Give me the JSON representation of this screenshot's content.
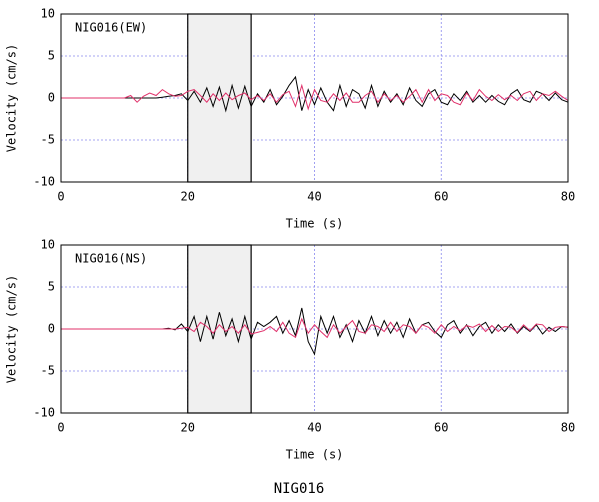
{
  "caption": "NIG016",
  "chart_data": [
    {
      "type": "line",
      "annotation": "NIG016(EW)",
      "xlabel": "Time (s)",
      "ylabel": "Velocity (cm/s)",
      "xlim": [
        0,
        80
      ],
      "xticks": [
        0,
        20,
        40,
        60,
        80
      ],
      "ylim": [
        -10,
        10
      ],
      "yticks": [
        -10,
        -5,
        0,
        5,
        10
      ],
      "grid": true,
      "shaded_region": [
        20,
        30
      ],
      "x": [
        0,
        1,
        2,
        3,
        4,
        5,
        6,
        7,
        8,
        9,
        10,
        11,
        12,
        13,
        14,
        15,
        16,
        17,
        18,
        19,
        20,
        21,
        22,
        23,
        24,
        25,
        26,
        27,
        28,
        29,
        30,
        31,
        32,
        33,
        34,
        35,
        36,
        37,
        38,
        39,
        40,
        41,
        42,
        43,
        44,
        45,
        46,
        47,
        48,
        49,
        50,
        51,
        52,
        53,
        54,
        55,
        56,
        57,
        58,
        59,
        60,
        61,
        62,
        63,
        64,
        65,
        66,
        67,
        68,
        69,
        70,
        71,
        72,
        73,
        74,
        75,
        76,
        77,
        78,
        79,
        80
      ],
      "series": [
        {
          "color": "#000000",
          "values": [
            0,
            0,
            0,
            0,
            0,
            0,
            0,
            0,
            0,
            0,
            0,
            0,
            0,
            0,
            0,
            0,
            0.1,
            0.2,
            0.3,
            0.5,
            -0.3,
            0.8,
            -0.5,
            1.2,
            -1.0,
            1.3,
            -1.5,
            1.5,
            -1.2,
            1.4,
            -1.0,
            0.5,
            -0.5,
            1.0,
            -0.8,
            0.2,
            1.5,
            2.5,
            -1.5,
            1.0,
            -0.8,
            1.2,
            -0.5,
            -1.5,
            1.5,
            -1.0,
            1.0,
            0.5,
            -1.2,
            1.5,
            -1.0,
            0.8,
            -0.5,
            0.5,
            -0.8,
            1.2,
            -0.3,
            -1.0,
            0.5,
            1.0,
            -0.5,
            -0.8,
            0.5,
            -0.3,
            0.8,
            -0.5,
            0.3,
            -0.5,
            0.3,
            -0.4,
            -0.8,
            0.5,
            1.0,
            -0.2,
            -0.5,
            0.8,
            0.5,
            -0.3,
            0.6,
            -0.2,
            -0.5
          ]
        },
        {
          "color": "#e0306a",
          "values": [
            0,
            0,
            0,
            0,
            0,
            0,
            0,
            0,
            0,
            0,
            0,
            0.3,
            -0.5,
            0.2,
            0.6,
            0.3,
            1.0,
            0.5,
            0.2,
            0.3,
            0.8,
            1.0,
            0.3,
            -0.5,
            0.5,
            -0.3,
            0.6,
            -0.2,
            0.3,
            0.6,
            -0.2,
            0.3,
            -0.3,
            0.5,
            -0.5,
            0.4,
            0.8,
            -1.0,
            1.5,
            -1.3,
            1.0,
            -0.3,
            -0.5,
            0.5,
            -0.3,
            0.6,
            -0.5,
            -0.5,
            0.3,
            0.8,
            -0.5,
            0.5,
            -0.3,
            0.3,
            -0.5,
            0.2,
            1.0,
            -0.5,
            1.0,
            -0.3,
            0.5,
            0.3,
            -0.5,
            -0.8,
            0.6,
            -0.3,
            1.0,
            0.2,
            -0.3,
            0.4,
            -0.2,
            0.3,
            -0.3,
            0.5,
            0.8,
            -0.3,
            0.5,
            0.3,
            0.8,
            0.2,
            -0.3
          ]
        }
      ]
    },
    {
      "type": "line",
      "annotation": "NIG016(NS)",
      "xlabel": "Time (s)",
      "ylabel": "Velocity (cm/s)",
      "xlim": [
        0,
        80
      ],
      "xticks": [
        0,
        20,
        40,
        60,
        80
      ],
      "ylim": [
        -10,
        10
      ],
      "yticks": [
        -10,
        -5,
        0,
        5,
        10
      ],
      "grid": true,
      "shaded_region": [
        20,
        30
      ],
      "x": [
        0,
        1,
        2,
        3,
        4,
        5,
        6,
        7,
        8,
        9,
        10,
        11,
        12,
        13,
        14,
        15,
        16,
        17,
        18,
        19,
        20,
        21,
        22,
        23,
        24,
        25,
        26,
        27,
        28,
        29,
        30,
        31,
        32,
        33,
        34,
        35,
        36,
        37,
        38,
        39,
        40,
        41,
        42,
        43,
        44,
        45,
        46,
        47,
        48,
        49,
        50,
        51,
        52,
        53,
        54,
        55,
        56,
        57,
        58,
        59,
        60,
        61,
        62,
        63,
        64,
        65,
        66,
        67,
        68,
        69,
        70,
        71,
        72,
        73,
        74,
        75,
        76,
        77,
        78,
        79,
        80
      ],
      "series": [
        {
          "color": "#000000",
          "values": [
            0,
            0,
            0,
            0,
            0,
            0,
            0,
            0,
            0,
            0,
            0,
            0,
            0,
            0,
            0,
            0,
            0,
            0.1,
            -0.1,
            0.6,
            -0.3,
            1.5,
            -1.5,
            1.5,
            -1.2,
            2.0,
            -0.8,
            1.2,
            -1.5,
            1.5,
            -1.2,
            0.8,
            0.3,
            0.8,
            1.5,
            -0.5,
            1.0,
            -0.8,
            2.5,
            -1.5,
            -3.0,
            1.5,
            -0.5,
            1.5,
            -1.0,
            0.5,
            -1.5,
            1.0,
            -0.5,
            1.5,
            -0.8,
            1.0,
            -0.5,
            0.8,
            -1.0,
            1.2,
            -0.5,
            0.5,
            0.8,
            -0.3,
            -1.0,
            0.5,
            1.0,
            -0.5,
            0.5,
            -0.8,
            0.3,
            0.8,
            -0.5,
            0.5,
            -0.3,
            0.6,
            -0.5,
            0.3,
            -0.3,
            0.5,
            -0.6,
            0.2,
            -0.3,
            0.3,
            0.2
          ]
        },
        {
          "color": "#e0306a",
          "values": [
            0,
            0,
            0,
            0,
            0,
            0,
            0,
            0,
            0,
            0,
            0,
            0,
            0,
            0,
            0,
            0,
            0,
            0,
            0,
            0.1,
            0.2,
            -0.3,
            0.8,
            0.3,
            -0.5,
            0.5,
            -0.3,
            0.3,
            -0.5,
            0.5,
            -0.6,
            -0.4,
            -0.2,
            0.3,
            -0.3,
            0.8,
            -0.5,
            -1.0,
            1.2,
            -0.5,
            0.5,
            -0.3,
            -1.0,
            0.5,
            -0.5,
            0.3,
            1.0,
            -0.3,
            -0.5,
            0.5,
            0.3,
            -0.3,
            0.8,
            -0.3,
            0.5,
            0.3,
            -0.5,
            0.5,
            0.2,
            -0.5,
            0.5,
            -0.3,
            0.3,
            -0.2,
            0.4,
            0.2,
            0.6,
            -0.3,
            0.4,
            -0.3,
            0.3,
            0.2,
            -0.4,
            0.5,
            -0.2,
            0.6,
            0.5,
            -0.3,
            0.2,
            0.3,
            0.2
          ]
        }
      ]
    }
  ]
}
